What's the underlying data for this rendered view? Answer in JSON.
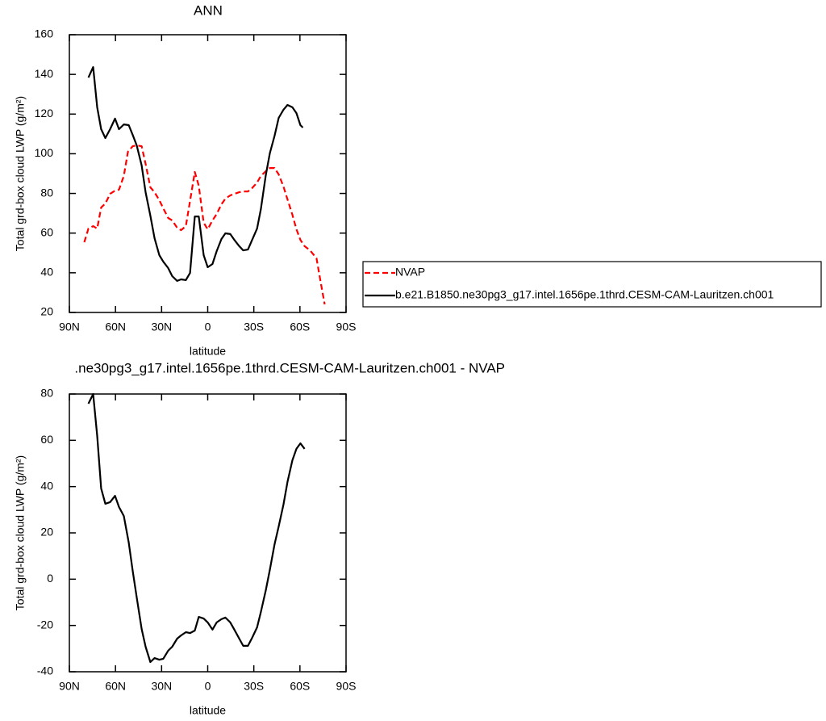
{
  "chart_data": [
    {
      "type": "line",
      "title": "ANN",
      "xlabel": "latitude",
      "ylabel": "Total grd-box cloud LWP (g/m²)",
      "xlim": [
        90,
        -90
      ],
      "ylim": [
        20,
        160
      ],
      "xticks": [
        {
          "value": 90,
          "label": "90N"
        },
        {
          "value": 60,
          "label": "60N"
        },
        {
          "value": 30,
          "label": "30N"
        },
        0,
        {
          "value": -30,
          "label": "30S"
        },
        {
          "value": -60,
          "label": "60S"
        },
        {
          "value": -90,
          "label": "90S"
        }
      ],
      "yticks": [
        20,
        40,
        60,
        80,
        100,
        120,
        140,
        160
      ],
      "legend": "right",
      "series": [
        {
          "name": "NVAP",
          "color": "#ff0000",
          "line_style": "dashed",
          "x": [
            80.3,
            77.6,
            74.5,
            71.9,
            69.3,
            66.6,
            63.5,
            60.3,
            57.7,
            54.6,
            51.9,
            48.8,
            46.2,
            43.0,
            40.4,
            37.3,
            34.6,
            31.5,
            28.9,
            25.7,
            23.1,
            19.9,
            17.3,
            14.2,
            11.5,
            8.4,
            5.8,
            2.6,
            0,
            -3.1,
            -5.8,
            -8.9,
            -11.5,
            -14.7,
            -17.3,
            -20.5,
            -23.1,
            -26.2,
            -28.9,
            -32.1,
            -34.6,
            -37.8,
            -40.4,
            -43.5,
            -46.2,
            -49.3,
            -51.9,
            -55.1,
            -57.7,
            -60.3,
            -63.0,
            -66.6,
            -70.8,
            -73.5,
            -76.1
          ],
          "values": [
            55.4,
            62.3,
            63.5,
            62.3,
            72.9,
            74.9,
            79.8,
            81.4,
            81.9,
            88.8,
            101.0,
            103.8,
            104.2,
            103.8,
            94.9,
            83.1,
            80.6,
            76.6,
            72.5,
            67.6,
            66.4,
            62.7,
            61.5,
            63.5,
            76.2,
            90.8,
            83.9,
            65.2,
            61.9,
            66.4,
            69.6,
            74.5,
            77.4,
            79.0,
            79.8,
            80.6,
            81.0,
            81.0,
            82.7,
            85.5,
            88.8,
            91.2,
            92.8,
            92.8,
            89.6,
            83.5,
            77.0,
            69.2,
            61.9,
            56.6,
            53.4,
            51.3,
            47.3,
            35.1,
            24.1
          ]
        },
        {
          "name": "b.e21.B1850.ne30pg3_g17.intel.1656pe.1thrd.CESM-CAM-Lauritzen.ch001",
          "color": "#000000",
          "line_style": "solid",
          "x": [
            77.6,
            74.5,
            71.9,
            69.3,
            66.6,
            63.5,
            60.3,
            57.7,
            54.6,
            51.4,
            48.8,
            46.2,
            43.0,
            40.4,
            37.3,
            34.6,
            31.5,
            28.9,
            25.7,
            23.1,
            19.9,
            17.3,
            14.2,
            11.5,
            8.4,
            5.8,
            2.6,
            0,
            -3.1,
            -5.8,
            -8.9,
            -11.5,
            -14.7,
            -17.3,
            -20.5,
            -23.1,
            -26.2,
            -28.9,
            -32.1,
            -34.6,
            -37.8,
            -40.4,
            -43.5,
            -46.2,
            -49.3,
            -51.9,
            -55.1,
            -57.7,
            -60.3,
            -61.9
          ],
          "values": [
            138.4,
            143.7,
            123.4,
            112.4,
            107.9,
            112.4,
            117.7,
            112.4,
            114.8,
            114.4,
            109.5,
            104.2,
            94.1,
            80.6,
            68.8,
            57.4,
            48.9,
            45.6,
            42.4,
            38.3,
            35.9,
            36.7,
            36.3,
            39.9,
            68.4,
            68.4,
            48.9,
            42.8,
            44.4,
            50.9,
            57.0,
            59.9,
            59.5,
            56.6,
            53.4,
            51.3,
            51.7,
            56.6,
            62.3,
            72.1,
            89.2,
            100.2,
            109.1,
            118.1,
            122.2,
            124.6,
            123.4,
            120.5,
            114.4,
            113.2
          ]
        }
      ]
    },
    {
      "type": "line",
      "title": ".ne30pg3_g17.intel.1656pe.1thrd.CESM-CAM-Lauritzen.ch001 - NVAP",
      "xlabel": "latitude",
      "ylabel": "Total grd-box cloud LWP (g/m²)",
      "xlim": [
        90,
        -90
      ],
      "ylim": [
        -40,
        80
      ],
      "xticks": [
        {
          "value": 90,
          "label": "90N"
        },
        {
          "value": 60,
          "label": "60N"
        },
        {
          "value": 30,
          "label": "30N"
        },
        0,
        {
          "value": -30,
          "label": "30S"
        },
        {
          "value": -60,
          "label": "60S"
        },
        {
          "value": -90,
          "label": "90S"
        }
      ],
      "yticks": [
        -40,
        -20,
        0,
        20,
        40,
        60,
        80
      ],
      "series": [
        {
          "color": "#000000",
          "line_style": "solid",
          "x": [
            77.6,
            74.5,
            71.9,
            69.3,
            66.6,
            63.5,
            60.3,
            57.7,
            54.6,
            51.4,
            48.8,
            46.2,
            43.0,
            40.4,
            37.3,
            34.6,
            31.5,
            28.9,
            25.7,
            23.1,
            19.9,
            17.3,
            14.2,
            11.5,
            8.4,
            5.8,
            2.6,
            0,
            -3.1,
            -5.8,
            -8.9,
            -11.5,
            -14.7,
            -17.3,
            -20.5,
            -23.1,
            -26.2,
            -28.9,
            -32.1,
            -34.6,
            -37.8,
            -40.4,
            -43.5,
            -46.2,
            -49.3,
            -51.9,
            -55.1,
            -57.7,
            -60.3,
            -63.0
          ],
          "values": [
            75.8,
            80.0,
            61.9,
            39.2,
            32.6,
            33.3,
            36.0,
            31.2,
            27.3,
            15.8,
            3.6,
            -7.9,
            -21.5,
            -29.2,
            -35.8,
            -34.1,
            -34.8,
            -34.4,
            -30.9,
            -29.2,
            -25.7,
            -24.3,
            -22.9,
            -23.3,
            -22.2,
            -16.3,
            -17.0,
            -18.7,
            -21.8,
            -18.7,
            -17.3,
            -16.6,
            -18.7,
            -21.8,
            -25.7,
            -28.8,
            -28.8,
            -25.3,
            -20.8,
            -14.2,
            -4.8,
            4.0,
            15.1,
            22.8,
            32.2,
            42.0,
            51.4,
            56.3,
            58.7,
            56.3
          ]
        }
      ]
    }
  ]
}
